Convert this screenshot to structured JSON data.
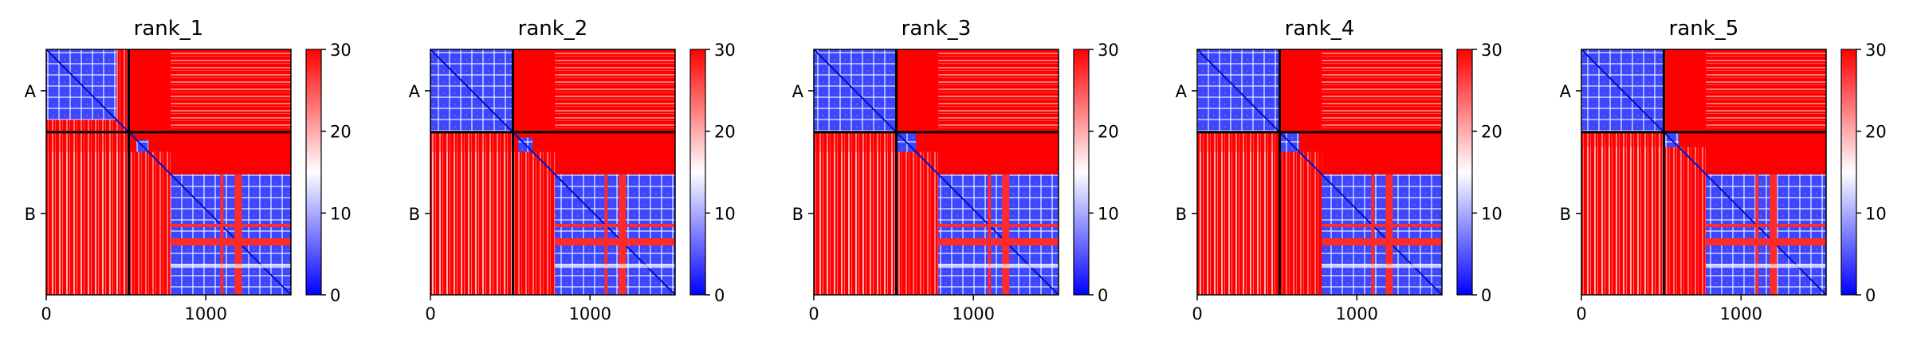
{
  "chart_data": [
    {
      "type": "heatmap",
      "title": "rank_1",
      "xlim": [
        0,
        1533
      ],
      "xticks": [
        0,
        1000
      ],
      "y_chain_labels": [
        "A",
        "B"
      ],
      "chain_boundary": 517,
      "colorbar": {
        "min": 0,
        "max": 30,
        "ticks": [
          0,
          10,
          20,
          30
        ],
        "colors": [
          "#0000ff",
          "#ffffff",
          "#ff0000"
        ]
      },
      "low_blocks": [
        [
          0,
          440,
          0,
          440
        ],
        [
          565,
          640,
          565,
          640
        ],
        [
          780,
          1533,
          780,
          1533
        ]
      ],
      "band_end": 640
    },
    {
      "type": "heatmap",
      "title": "rank_2",
      "xlim": [
        0,
        1533
      ],
      "xticks": [
        0,
        1000
      ],
      "y_chain_labels": [
        "A",
        "B"
      ],
      "chain_boundary": 517,
      "colorbar": {
        "min": 0,
        "max": 30,
        "ticks": [
          0,
          10,
          20,
          30
        ],
        "colors": [
          "#0000ff",
          "#ffffff",
          "#ff0000"
        ]
      },
      "low_blocks": [
        [
          0,
          517,
          0,
          517
        ],
        [
          550,
          640,
          550,
          640
        ],
        [
          780,
          1533,
          780,
          1533
        ]
      ],
      "band_end": 640
    },
    {
      "type": "heatmap",
      "title": "rank_3",
      "xlim": [
        0,
        1533
      ],
      "xticks": [
        0,
        1000
      ],
      "y_chain_labels": [
        "A",
        "B"
      ],
      "chain_boundary": 517,
      "colorbar": {
        "min": 0,
        "max": 30,
        "ticks": [
          0,
          10,
          20,
          30
        ],
        "colors": [
          "#0000ff",
          "#ffffff",
          "#ff0000"
        ]
      },
      "low_blocks": [
        [
          0,
          517,
          0,
          517
        ],
        [
          517,
          640,
          517,
          640
        ],
        [
          780,
          1533,
          780,
          1533
        ]
      ],
      "band_end": 640
    },
    {
      "type": "heatmap",
      "title": "rank_4",
      "xlim": [
        0,
        1533
      ],
      "xticks": [
        0,
        1000
      ],
      "y_chain_labels": [
        "A",
        "B"
      ],
      "chain_boundary": 517,
      "colorbar": {
        "min": 0,
        "max": 30,
        "ticks": [
          0,
          10,
          20,
          30
        ],
        "colors": [
          "#0000ff",
          "#ffffff",
          "#ff0000"
        ]
      },
      "low_blocks": [
        [
          0,
          517,
          0,
          517
        ],
        [
          517,
          640,
          517,
          640
        ],
        [
          780,
          1533,
          780,
          1533
        ]
      ],
      "band_end": 640
    },
    {
      "type": "heatmap",
      "title": "rank_5",
      "xlim": [
        0,
        1533
      ],
      "xticks": [
        0,
        1000
      ],
      "y_chain_labels": [
        "A",
        "B"
      ],
      "chain_boundary": 517,
      "colorbar": {
        "min": 0,
        "max": 30,
        "ticks": [
          0,
          10,
          20,
          30
        ],
        "colors": [
          "#0000ff",
          "#ffffff",
          "#ff0000"
        ]
      },
      "low_blocks": [
        [
          0,
          517,
          0,
          517
        ],
        [
          517,
          610,
          517,
          610
        ],
        [
          780,
          1533,
          780,
          1533
        ]
      ],
      "band_end": 610
    }
  ]
}
